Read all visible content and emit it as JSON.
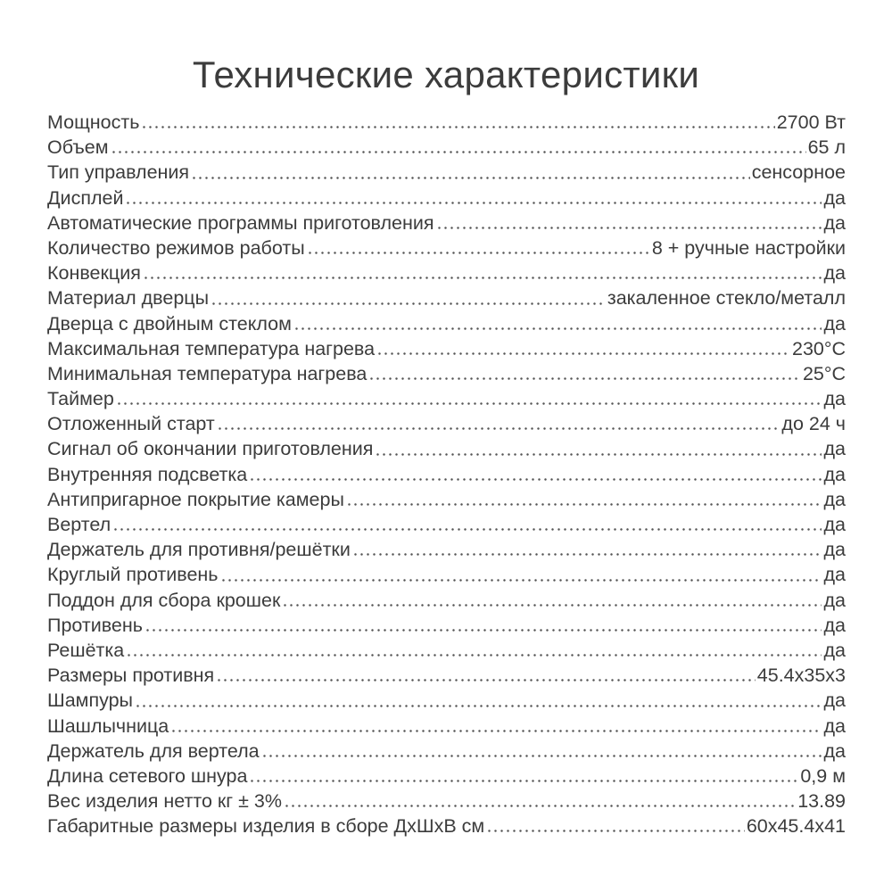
{
  "title": "Технические характеристики",
  "specs": [
    {
      "label": "Мощность",
      "value": "2700 Вт"
    },
    {
      "label": "Объем",
      "value": "65 л"
    },
    {
      "label": "Тип управления",
      "value": "сенсорное"
    },
    {
      "label": "Дисплей",
      "value": "да"
    },
    {
      "label": "Автоматические программы приготовления",
      "value": "да"
    },
    {
      "label": "Количество режимов работы",
      "value": "8 + ручные настройки"
    },
    {
      "label": "Конвекция",
      "value": "да"
    },
    {
      "label": "Материал дверцы",
      "value": "закаленное стекло/металл"
    },
    {
      "label": "Дверца с двойным стеклом",
      "value": "да"
    },
    {
      "label": "Максимальная температура нагрева",
      "value": "230°C"
    },
    {
      "label": "Минимальная температура нагрева",
      "value": "25°C"
    },
    {
      "label": "Таймер",
      "value": "да"
    },
    {
      "label": "Отложенный старт",
      "value": "до 24 ч"
    },
    {
      "label": "Сигнал об окончании приготовления",
      "value": "да"
    },
    {
      "label": "Внутренняя подсветка",
      "value": "да"
    },
    {
      "label": "Антипригарное покрытие камеры",
      "value": "да"
    },
    {
      "label": "Вертел",
      "value": "да"
    },
    {
      "label": "Держатель для противня/решётки",
      "value": "да"
    },
    {
      "label": "Круглый противень",
      "value": "да"
    },
    {
      "label": "Поддон для сбора крошек",
      "value": "да"
    },
    {
      "label": "Противень",
      "value": "да"
    },
    {
      "label": "Решётка",
      "value": "да"
    },
    {
      "label": "Размеры противня",
      "value": "45.4x35x3"
    },
    {
      "label": "Шампуры",
      "value": "да"
    },
    {
      "label": "Шашлычница",
      "value": "да"
    },
    {
      "label": "Держатель для вертела",
      "value": "да"
    },
    {
      "label": "Длина сетевого шнура",
      "value": "0,9 м"
    },
    {
      "label": "Вес изделия нетто кг ± 3%",
      "value": "13.89"
    },
    {
      "label": "Габаритные размеры изделия в сборе ДхШхВ см",
      "value": "60x45.4x41"
    }
  ]
}
